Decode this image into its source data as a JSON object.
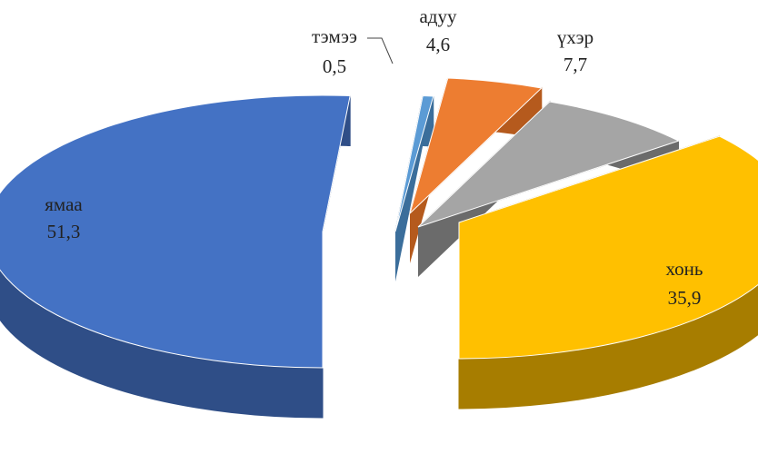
{
  "chart_data": {
    "type": "pie",
    "title": "",
    "series": [
      {
        "name": "",
        "slices": [
          {
            "label": "ямаа",
            "value": 51.3,
            "value_label": "51,3",
            "color": "#4472C4",
            "side_color": "#2F4E87"
          },
          {
            "label": "тэмээ",
            "value": 0.5,
            "value_label": "0,5",
            "color": "#5B9BD5",
            "side_color": "#3B6E9B"
          },
          {
            "label": "адуу",
            "value": 4.6,
            "value_label": "4,6",
            "color": "#ED7D31",
            "side_color": "#B55A1D"
          },
          {
            "label": "үхэр",
            "value": 7.7,
            "value_label": "7,7",
            "color": "#A5A5A5",
            "side_color": "#6B6B6B"
          },
          {
            "label": "хонь",
            "value": 35.9,
            "value_label": "35,9",
            "color": "#FFC000",
            "side_color": "#A77D00"
          }
        ]
      }
    ],
    "style": "3d-exploded",
    "legend": "none"
  }
}
